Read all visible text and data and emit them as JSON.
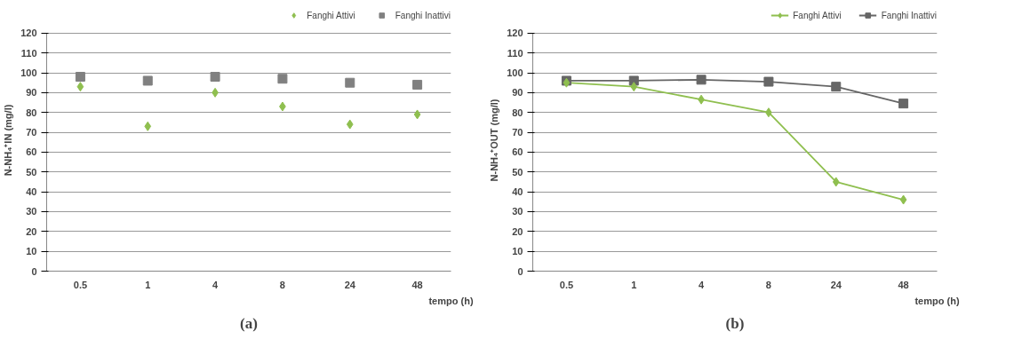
{
  "chart_data": [
    {
      "type": "scatter",
      "ylabel": "N-NH₄⁺IN (mg/l)",
      "xlabel": "tempo (h)",
      "categories": [
        "0.5",
        "1",
        "4",
        "8",
        "24",
        "48"
      ],
      "ylim": [
        0,
        120
      ],
      "yticks": [
        0,
        10,
        20,
        30,
        40,
        50,
        60,
        70,
        80,
        90,
        100,
        110,
        120
      ],
      "grid": "y",
      "legend": "top right",
      "annotations": [
        "(a)"
      ],
      "series": [
        {
          "name": "Fanghi Attivi",
          "color": "#8fbf4f",
          "marker": "diamond",
          "values": [
            93,
            73,
            90,
            83,
            74,
            79
          ]
        },
        {
          "name": "Fanghi Inattivi",
          "color": "#808080",
          "marker": "square",
          "values": [
            98,
            96,
            98,
            97,
            95,
            94
          ]
        }
      ]
    },
    {
      "type": "line",
      "ylabel": "N-NH₄⁺OUT (mg/l)",
      "xlabel": "tempo (h)",
      "categories": [
        "0.5",
        "1",
        "4",
        "8",
        "24",
        "48"
      ],
      "ylim": [
        0,
        120
      ],
      "yticks": [
        0,
        10,
        20,
        30,
        40,
        50,
        60,
        70,
        80,
        90,
        100,
        110,
        120
      ],
      "grid": "y",
      "legend": "top right",
      "annotations": [
        "(b)"
      ],
      "series": [
        {
          "name": "Fanghi Attivi",
          "color": "#8fbf4f",
          "marker": "diamond",
          "values": [
            95,
            93,
            86.5,
            80,
            45,
            36
          ]
        },
        {
          "name": "Fanghi Inattivi",
          "color": "#666666",
          "marker": "square",
          "values": [
            96,
            96,
            96.5,
            95.5,
            93,
            84.5
          ]
        }
      ]
    }
  ]
}
